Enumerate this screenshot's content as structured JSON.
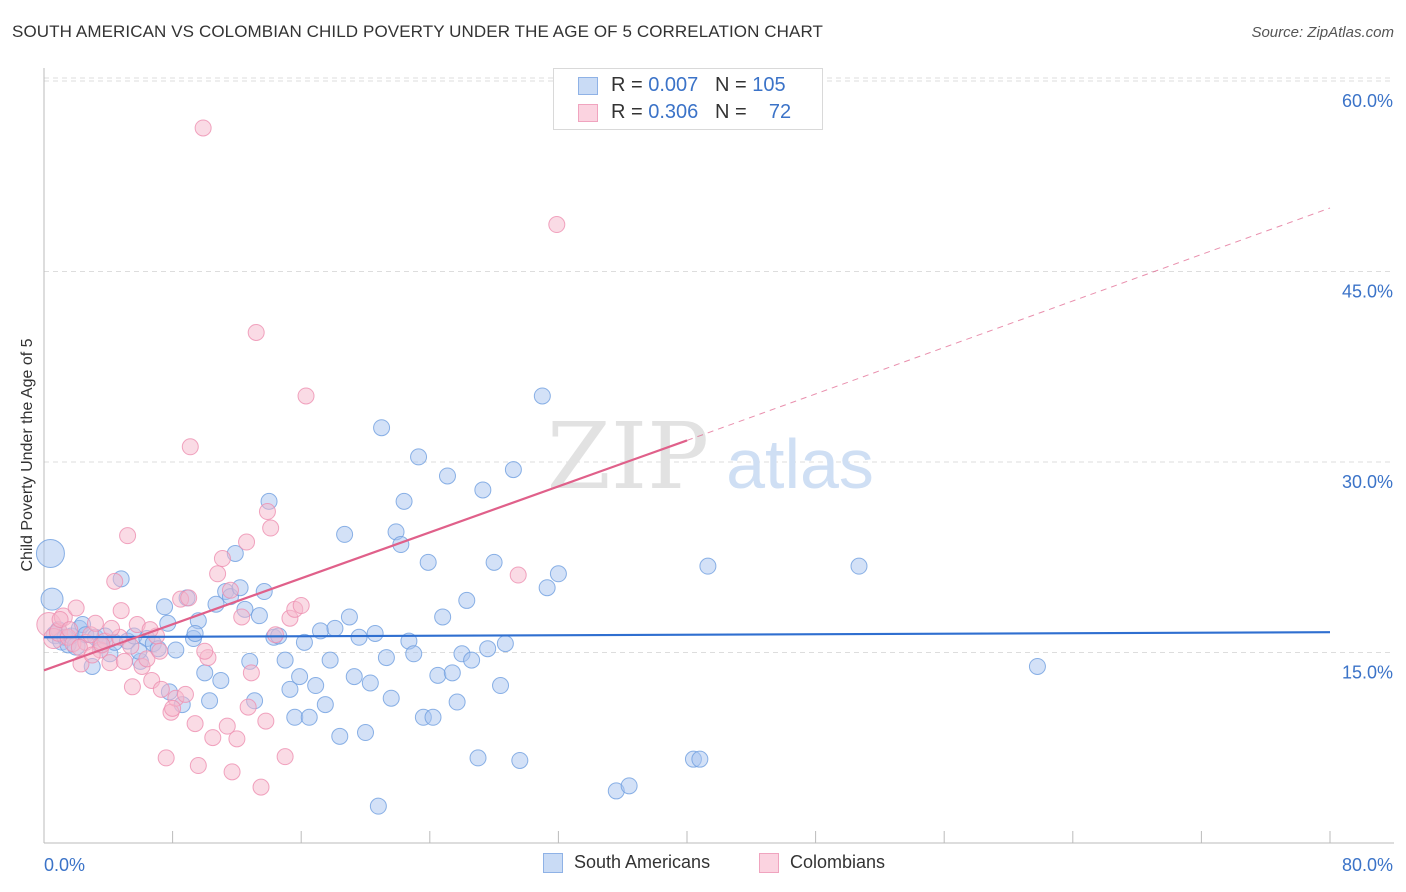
{
  "header": {
    "title": "SOUTH AMERICAN VS COLOMBIAN CHILD POVERTY UNDER THE AGE OF 5 CORRELATION CHART",
    "source": "Source: ZipAtlas.com"
  },
  "watermark": {
    "zip": "ZIP",
    "atlas": "atlas"
  },
  "legend": {
    "rows": [
      {
        "r_label": "R =",
        "r_value": "0.007",
        "n_label": "N =",
        "n_value": "105",
        "color": "#a7c4ef"
      },
      {
        "r_label": "R =",
        "r_value": "0.306",
        "n_label": "N =",
        "n_value": "72",
        "color": "#f5b8cc"
      }
    ]
  },
  "bottom_legend": [
    {
      "label": "South Americans",
      "color": "#a7c4ef"
    },
    {
      "label": "Colombians",
      "color": "#f5b8cc"
    }
  ],
  "chart_data": {
    "type": "scatter",
    "title": "SOUTH AMERICAN VS COLOMBIAN CHILD POVERTY UNDER THE AGE OF 5 CORRELATION CHART",
    "xlabel": "",
    "ylabel": "Child Poverty Under the Age of 5",
    "xlim": [
      0,
      80
    ],
    "ylim": [
      0,
      60
    ],
    "x_tick_labels": [
      "0.0%",
      "80.0%"
    ],
    "y_tick_values": [
      15,
      30,
      45,
      60
    ],
    "y_tick_labels": [
      "15.0%",
      "30.0%",
      "45.0%",
      "60.0%"
    ],
    "grid": true,
    "legend_position": "top-center",
    "series": [
      {
        "name": "South Americans",
        "color": "#6f9fe0",
        "fill": "#a7c4ef",
        "trend": {
          "x": [
            0,
            80
          ],
          "y": [
            16.2,
            16.6
          ],
          "color": "#2f6fd0"
        },
        "points": [
          [
            0.4,
            22.8,
            14
          ],
          [
            0.5,
            19.2,
            11
          ],
          [
            0.7,
            16.4,
            9
          ],
          [
            0.9,
            16.8,
            8
          ],
          [
            1.1,
            15.9,
            9
          ],
          [
            1.3,
            16.2,
            8
          ],
          [
            1.5,
            15.6,
            8
          ],
          [
            1.7,
            16.3,
            8
          ],
          [
            2.0,
            15.5,
            9
          ],
          [
            2.2,
            16.9,
            8
          ],
          [
            2.4,
            17.2,
            8
          ],
          [
            2.6,
            16.4,
            8
          ],
          [
            3.0,
            13.9,
            8
          ],
          [
            3.2,
            16.2,
            8
          ],
          [
            3.5,
            15.6,
            8
          ],
          [
            3.8,
            16.3,
            8
          ],
          [
            4.1,
            14.9,
            8
          ],
          [
            4.4,
            15.8,
            8
          ],
          [
            4.8,
            20.8,
            8
          ],
          [
            5.2,
            15.9,
            8
          ],
          [
            5.6,
            16.3,
            8
          ],
          [
            6.0,
            14.3,
            8
          ],
          [
            6.4,
            16.1,
            8
          ],
          [
            6.8,
            15.7,
            8
          ],
          [
            7.1,
            15.3,
            8
          ],
          [
            7.5,
            18.6,
            8
          ],
          [
            7.8,
            11.9,
            8
          ],
          [
            8.2,
            15.2,
            8
          ],
          [
            8.6,
            10.9,
            8
          ],
          [
            8.9,
            19.3,
            8
          ],
          [
            9.3,
            16.1,
            8
          ],
          [
            9.6,
            17.5,
            8
          ],
          [
            10.0,
            13.4,
            8
          ],
          [
            10.3,
            11.2,
            8
          ],
          [
            10.7,
            18.8,
            8
          ],
          [
            11.0,
            12.8,
            8
          ],
          [
            11.3,
            19.8,
            8
          ],
          [
            11.6,
            19.4,
            8
          ],
          [
            11.9,
            22.8,
            8
          ],
          [
            12.2,
            20.1,
            8
          ],
          [
            12.5,
            18.4,
            8
          ],
          [
            12.8,
            14.3,
            8
          ],
          [
            13.1,
            11.2,
            8
          ],
          [
            13.4,
            17.9,
            8
          ],
          [
            13.7,
            19.8,
            8
          ],
          [
            14.0,
            26.9,
            8
          ],
          [
            14.3,
            16.2,
            8
          ],
          [
            14.6,
            16.3,
            8
          ],
          [
            15.0,
            14.4,
            8
          ],
          [
            15.3,
            12.1,
            8
          ],
          [
            15.6,
            9.9,
            8
          ],
          [
            15.9,
            13.1,
            8
          ],
          [
            16.2,
            15.8,
            8
          ],
          [
            16.5,
            9.9,
            8
          ],
          [
            16.9,
            12.4,
            8
          ],
          [
            17.2,
            16.7,
            8
          ],
          [
            17.5,
            10.9,
            8
          ],
          [
            17.8,
            14.4,
            8
          ],
          [
            18.1,
            16.9,
            8
          ],
          [
            18.4,
            8.4,
            8
          ],
          [
            18.7,
            24.3,
            8
          ],
          [
            19.0,
            17.8,
            8
          ],
          [
            19.3,
            13.1,
            8
          ],
          [
            19.6,
            16.2,
            8
          ],
          [
            20.0,
            8.7,
            8
          ],
          [
            20.3,
            12.6,
            8
          ],
          [
            20.6,
            16.5,
            8
          ],
          [
            20.8,
            2.9,
            8
          ],
          [
            21.0,
            32.7,
            8
          ],
          [
            21.3,
            14.6,
            8
          ],
          [
            21.6,
            11.4,
            8
          ],
          [
            21.9,
            24.5,
            8
          ],
          [
            22.2,
            23.5,
            8
          ],
          [
            22.4,
            26.9,
            8
          ],
          [
            22.7,
            15.9,
            8
          ],
          [
            23.0,
            14.9,
            8
          ],
          [
            23.3,
            30.4,
            8
          ],
          [
            23.6,
            9.9,
            8
          ],
          [
            23.9,
            22.1,
            8
          ],
          [
            24.2,
            9.9,
            8
          ],
          [
            24.5,
            13.2,
            8
          ],
          [
            24.8,
            17.8,
            8
          ],
          [
            25.1,
            28.9,
            8
          ],
          [
            25.4,
            13.4,
            8
          ],
          [
            25.7,
            11.1,
            8
          ],
          [
            26.0,
            14.9,
            8
          ],
          [
            26.3,
            19.1,
            8
          ],
          [
            26.6,
            14.4,
            8
          ],
          [
            27.0,
            6.7,
            8
          ],
          [
            27.3,
            27.8,
            8
          ],
          [
            27.6,
            15.3,
            8
          ],
          [
            28.0,
            22.1,
            8
          ],
          [
            28.4,
            12.4,
            8
          ],
          [
            28.7,
            15.7,
            8
          ],
          [
            29.2,
            29.4,
            8
          ],
          [
            29.6,
            6.5,
            8
          ],
          [
            31.0,
            35.2,
            8
          ],
          [
            31.3,
            20.1,
            8
          ],
          [
            32.0,
            21.2,
            8
          ],
          [
            35.6,
            4.1,
            8
          ],
          [
            36.4,
            4.5,
            8
          ],
          [
            40.4,
            6.6,
            8
          ],
          [
            40.8,
            6.6,
            8
          ],
          [
            41.3,
            21.8,
            8
          ],
          [
            50.7,
            21.8,
            8
          ],
          [
            61.8,
            13.9,
            8
          ],
          [
            9.4,
            16.5,
            8
          ],
          [
            5.9,
            15.1,
            8
          ],
          [
            7.7,
            17.3,
            8
          ]
        ]
      },
      {
        "name": "Colombians",
        "color": "#ee8fb0",
        "fill": "#f5b8cc",
        "trend": {
          "x": [
            0,
            40
          ],
          "y": [
            13.6,
            31.7
          ],
          "dash_to": [
            80,
            50.0
          ],
          "color": "#e0608a"
        },
        "points": [
          [
            0.3,
            17.2,
            12
          ],
          [
            0.6,
            16.1,
            10
          ],
          [
            0.9,
            16.6,
            9
          ],
          [
            1.2,
            17.8,
            9
          ],
          [
            1.5,
            16.2,
            8
          ],
          [
            1.8,
            15.7,
            8
          ],
          [
            2.0,
            18.5,
            8
          ],
          [
            2.3,
            14.1,
            8
          ],
          [
            2.6,
            15.8,
            8
          ],
          [
            2.9,
            16.4,
            8
          ],
          [
            3.2,
            17.3,
            8
          ],
          [
            3.5,
            15.2,
            8
          ],
          [
            3.8,
            15.9,
            8
          ],
          [
            4.1,
            14.2,
            8
          ],
          [
            4.4,
            20.6,
            8
          ],
          [
            4.7,
            16.2,
            8
          ],
          [
            5.0,
            14.3,
            8
          ],
          [
            5.2,
            24.2,
            8
          ],
          [
            5.5,
            12.3,
            8
          ],
          [
            5.8,
            17.2,
            8
          ],
          [
            6.1,
            13.9,
            8
          ],
          [
            6.4,
            14.5,
            8
          ],
          [
            6.7,
            12.8,
            8
          ],
          [
            7.0,
            16.3,
            8
          ],
          [
            7.3,
            12.1,
            8
          ],
          [
            7.6,
            6.7,
            8
          ],
          [
            7.9,
            10.3,
            8
          ],
          [
            8.2,
            11.4,
            8
          ],
          [
            8.5,
            19.2,
            8
          ],
          [
            8.8,
            11.7,
            8
          ],
          [
            9.1,
            31.2,
            8
          ],
          [
            9.4,
            9.4,
            8
          ],
          [
            9.6,
            6.1,
            8
          ],
          [
            9.9,
            56.3,
            8
          ],
          [
            10.2,
            14.6,
            8
          ],
          [
            10.5,
            8.3,
            8
          ],
          [
            10.8,
            21.2,
            8
          ],
          [
            11.1,
            22.4,
            8
          ],
          [
            11.4,
            9.2,
            8
          ],
          [
            11.7,
            5.6,
            8
          ],
          [
            12.0,
            8.2,
            8
          ],
          [
            12.3,
            17.8,
            8
          ],
          [
            12.6,
            23.7,
            8
          ],
          [
            12.9,
            13.4,
            8
          ],
          [
            13.2,
            40.2,
            8
          ],
          [
            13.5,
            4.4,
            8
          ],
          [
            13.8,
            9.6,
            8
          ],
          [
            14.1,
            24.8,
            8
          ],
          [
            14.4,
            16.4,
            8
          ],
          [
            15.0,
            6.8,
            8
          ],
          [
            15.3,
            17.7,
            8
          ],
          [
            15.6,
            18.4,
            8
          ],
          [
            16.3,
            35.2,
            8
          ],
          [
            29.5,
            21.1,
            8
          ],
          [
            31.9,
            48.7,
            8
          ],
          [
            1.0,
            17.6,
            8
          ],
          [
            1.6,
            16.8,
            8
          ],
          [
            2.2,
            15.4,
            8
          ],
          [
            3.0,
            14.8,
            8
          ],
          [
            3.6,
            15.6,
            8
          ],
          [
            4.2,
            16.9,
            8
          ],
          [
            4.8,
            18.3,
            8
          ],
          [
            5.4,
            15.5,
            8
          ],
          [
            6.6,
            16.8,
            8
          ],
          [
            7.2,
            15.1,
            8
          ],
          [
            8.0,
            10.6,
            8
          ],
          [
            10.0,
            15.1,
            8
          ],
          [
            11.6,
            19.9,
            8
          ],
          [
            12.7,
            10.7,
            8
          ],
          [
            13.9,
            26.1,
            8
          ],
          [
            16.0,
            18.7,
            8
          ],
          [
            9.0,
            19.3,
            8
          ]
        ]
      }
    ]
  }
}
